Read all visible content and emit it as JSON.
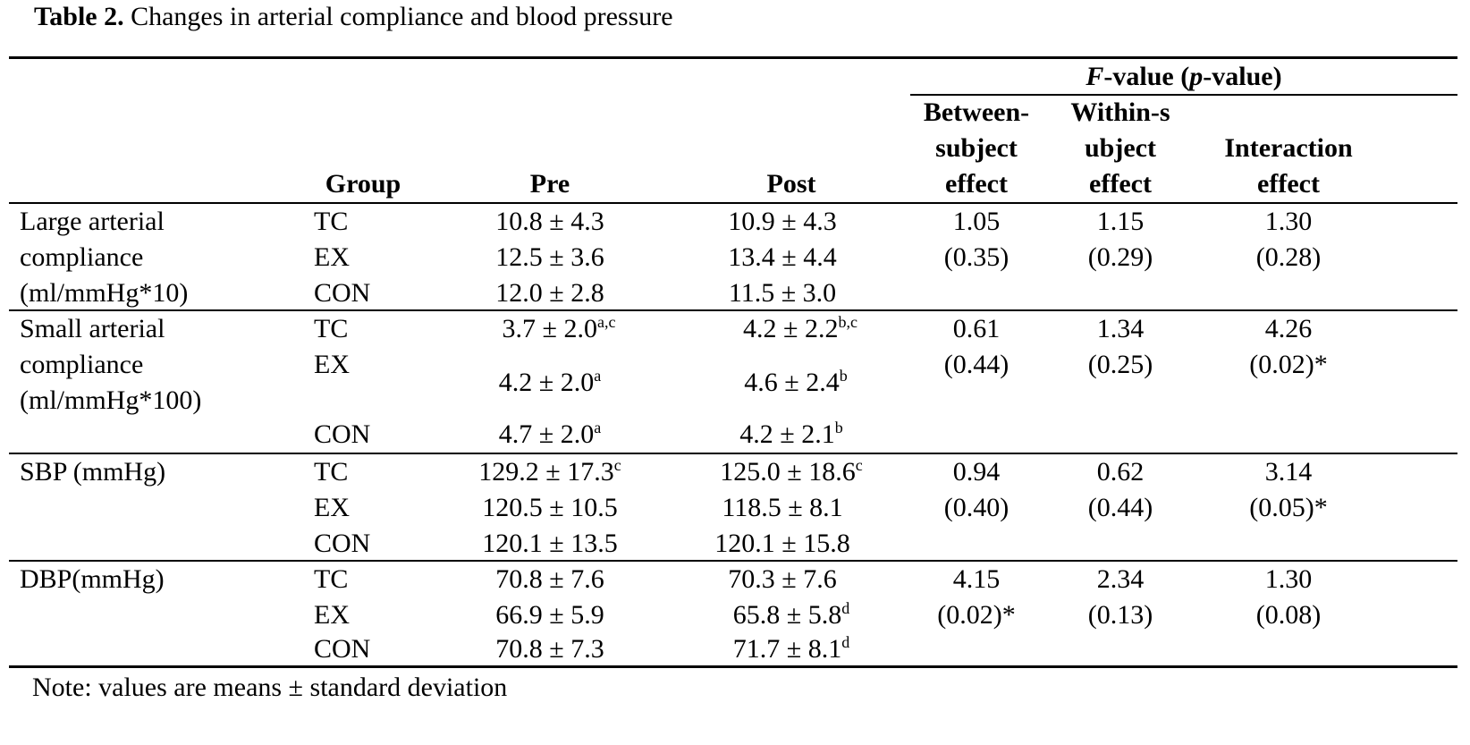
{
  "caption": {
    "label": "Table 2.",
    "text": "Changes in arterial compliance and blood pressure"
  },
  "header": {
    "group": "Group",
    "pre": "Pre",
    "post": "Post",
    "fvalue_italic_f": "F",
    "fvalue_mid": "-value (",
    "fvalue_italic_p": "p",
    "fvalue_end": "-value)",
    "between": [
      "Between-",
      "subject",
      "effect"
    ],
    "within": [
      "Within-s",
      "ubject",
      "effect"
    ],
    "interaction": [
      "Interaction",
      "effect"
    ]
  },
  "sections": [
    {
      "label": [
        "Large arterial",
        "compliance",
        "(ml/mmHg*10)"
      ],
      "groups": [
        "TC",
        "EX",
        "CON"
      ],
      "pre": [
        {
          "v": "10.8 ± 4.3",
          "s": ""
        },
        {
          "v": "12.5 ± 3.6",
          "s": ""
        },
        {
          "v": "12.0 ± 2.8",
          "s": ""
        }
      ],
      "post": [
        {
          "v": "10.9 ± 4.3",
          "s": ""
        },
        {
          "v": "13.4 ± 4.4",
          "s": ""
        },
        {
          "v": "11.5 ± 3.0",
          "s": ""
        }
      ],
      "between": [
        "1.05",
        "(0.35)"
      ],
      "within": [
        "1.15",
        "(0.29)"
      ],
      "interaction": [
        "1.30",
        "(0.28)"
      ]
    },
    {
      "label": [
        "Small arterial",
        "compliance",
        "(ml/mmHg*100)"
      ],
      "groups": [
        "TC",
        "EX",
        "CON"
      ],
      "pre": [
        {
          "v": "3.7 ± 2.0",
          "s": "a,c"
        },
        {
          "v": "4.2 ± 2.0",
          "s": "a"
        },
        {
          "v": "4.7 ± 2.0",
          "s": "a"
        }
      ],
      "post": [
        {
          "v": "4.2 ± 2.2",
          "s": "b,c"
        },
        {
          "v": "4.6 ± 2.4",
          "s": "b"
        },
        {
          "v": "4.2 ± 2.1",
          "s": "b"
        }
      ],
      "between": [
        "0.61",
        "(0.44)"
      ],
      "within": [
        "1.34",
        "(0.25)"
      ],
      "interaction": [
        "4.26",
        "(0.02)*"
      ]
    },
    {
      "label": [
        "SBP (mmHg)"
      ],
      "groups": [
        "TC",
        "EX",
        "CON"
      ],
      "pre": [
        {
          "v": "129.2 ± 17.3",
          "s": "c"
        },
        {
          "v": "120.5 ± 10.5",
          "s": ""
        },
        {
          "v": "120.1 ± 13.5",
          "s": ""
        }
      ],
      "post": [
        {
          "v": "125.0 ± 18.6",
          "s": "c"
        },
        {
          "v": "118.5 ± 8.1",
          "s": ""
        },
        {
          "v": "120.1 ± 15.8",
          "s": ""
        }
      ],
      "between": [
        "0.94",
        "(0.40)"
      ],
      "within": [
        "0.62",
        "(0.44)"
      ],
      "interaction": [
        "3.14",
        "(0.05)*"
      ]
    },
    {
      "label": [
        "DBP(mmHg)"
      ],
      "groups": [
        "TC",
        "EX",
        "CON"
      ],
      "pre": [
        {
          "v": "70.8 ± 7.6",
          "s": ""
        },
        {
          "v": "66.9 ± 5.9",
          "s": ""
        },
        {
          "v": "70.8 ± 7.3",
          "s": ""
        }
      ],
      "post": [
        {
          "v": "70.3 ± 7.6",
          "s": ""
        },
        {
          "v": "65.8 ± 5.8",
          "s": "d"
        },
        {
          "v": "71.7 ± 8.1",
          "s": "d"
        }
      ],
      "between": [
        "4.15",
        "(0.02)*"
      ],
      "within": [
        "2.34",
        "(0.13)"
      ],
      "interaction": [
        "1.30",
        "(0.08)"
      ]
    }
  ],
  "note": "Note: values are means ± standard deviation"
}
